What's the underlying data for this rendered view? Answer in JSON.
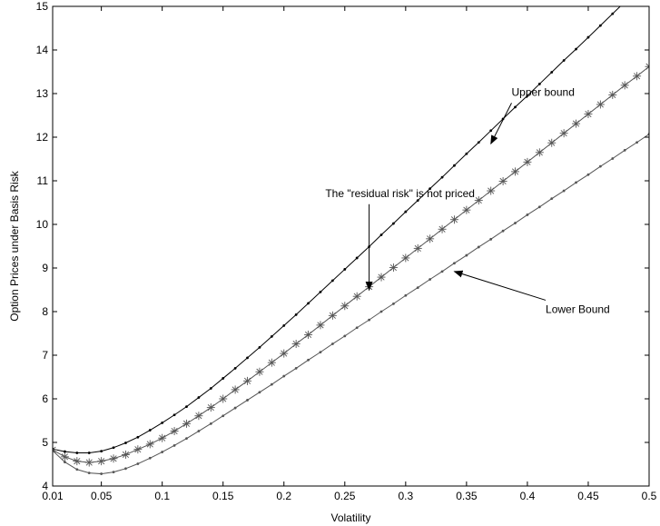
{
  "chart_data": {
    "type": "line",
    "title": "",
    "xlabel": "Volatility",
    "ylabel": "Option Prices under Basis Risk",
    "xlim": [
      0.01,
      0.5
    ],
    "ylim": [
      4,
      15
    ],
    "grid": false,
    "xticks": [
      0.01,
      0.05,
      0.1,
      0.15,
      0.2,
      0.25,
      0.3,
      0.35,
      0.4,
      0.45,
      0.5
    ],
    "xtick_labels": [
      "0.01",
      "0.05",
      "0.1",
      "0.15",
      "0.2",
      "0.25",
      "0.3",
      "0.35",
      "0.4",
      "0.45",
      "0.5"
    ],
    "yticks": [
      4,
      5,
      6,
      7,
      8,
      9,
      10,
      11,
      12,
      13,
      14,
      15
    ],
    "ytick_labels": [
      "4",
      "5",
      "6",
      "7",
      "8",
      "9",
      "10",
      "11",
      "12",
      "13",
      "14",
      "15"
    ],
    "x": [
      0.01,
      0.02,
      0.03,
      0.04,
      0.05,
      0.06,
      0.07,
      0.08,
      0.09,
      0.1,
      0.11,
      0.12,
      0.13,
      0.14,
      0.15,
      0.16,
      0.17,
      0.18,
      0.19,
      0.2,
      0.21,
      0.22,
      0.23,
      0.24,
      0.25,
      0.26,
      0.27,
      0.28,
      0.29,
      0.3,
      0.31,
      0.32,
      0.33,
      0.34,
      0.35,
      0.36,
      0.37,
      0.38,
      0.39,
      0.4,
      0.41,
      0.42,
      0.43,
      0.44,
      0.45,
      0.46,
      0.47,
      0.48,
      0.49,
      0.5
    ],
    "series": [
      {
        "marker": "dot",
        "color": "#000000",
        "values": [
          4.85,
          4.79,
          4.76,
          4.76,
          4.8,
          4.88,
          4.99,
          5.12,
          5.28,
          5.45,
          5.63,
          5.82,
          6.03,
          6.24,
          6.47,
          6.7,
          6.94,
          7.18,
          7.43,
          7.68,
          7.93,
          8.19,
          8.45,
          8.71,
          8.97,
          9.23,
          9.49,
          9.76,
          10.02,
          10.29,
          10.55,
          10.82,
          11.08,
          11.35,
          11.62,
          11.88,
          12.15,
          12.42,
          12.69,
          12.95,
          13.22,
          13.49,
          13.76,
          14.02,
          14.29,
          14.56,
          14.83,
          15.1,
          15.36,
          15.63
        ]
      },
      {
        "marker": "star",
        "color": "#555555",
        "values": [
          4.83,
          4.67,
          4.57,
          4.54,
          4.57,
          4.63,
          4.72,
          4.84,
          4.96,
          5.1,
          5.26,
          5.43,
          5.61,
          5.8,
          6.0,
          6.21,
          6.41,
          6.62,
          6.83,
          7.04,
          7.26,
          7.47,
          7.69,
          7.91,
          8.13,
          8.35,
          8.57,
          8.79,
          9.01,
          9.23,
          9.45,
          9.67,
          9.89,
          10.11,
          10.33,
          10.55,
          10.77,
          10.99,
          11.21,
          11.43,
          11.65,
          11.87,
          12.09,
          12.31,
          12.53,
          12.75,
          12.97,
          13.19,
          13.4,
          13.62
        ]
      },
      {
        "marker": "dot",
        "color": "#555555",
        "values": [
          4.81,
          4.55,
          4.38,
          4.3,
          4.28,
          4.32,
          4.4,
          4.51,
          4.64,
          4.78,
          4.93,
          5.09,
          5.26,
          5.43,
          5.61,
          5.79,
          5.97,
          6.15,
          6.33,
          6.52,
          6.7,
          6.89,
          7.07,
          7.26,
          7.44,
          7.63,
          7.81,
          8.0,
          8.18,
          8.37,
          8.55,
          8.74,
          8.92,
          9.11,
          9.29,
          9.48,
          9.66,
          9.85,
          10.03,
          10.22,
          10.4,
          10.59,
          10.77,
          10.96,
          11.14,
          11.33,
          11.51,
          11.7,
          11.88,
          12.07
        ]
      }
    ],
    "annotations": [
      {
        "text": "Upper bound",
        "label_x": 0.387,
        "label_y": 12.95,
        "arrow_to_x": 0.37,
        "arrow_to_y": 11.85
      },
      {
        "text": "The \"residual risk\" is not priced",
        "label_x": 0.234,
        "label_y": 10.63,
        "arrow_to_x": 0.27,
        "arrow_to_y": 8.5
      },
      {
        "text": "Lower Bound",
        "label_x": 0.415,
        "label_y": 7.97,
        "arrow_to_x": 0.34,
        "arrow_to_y": 8.92
      }
    ]
  }
}
